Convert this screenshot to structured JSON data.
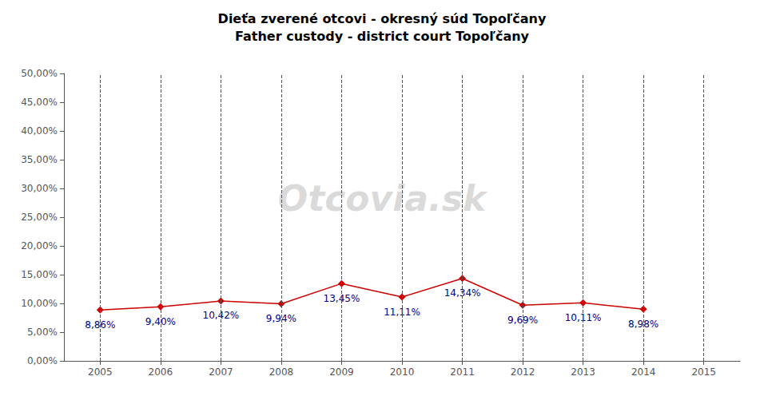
{
  "chart_data": {
    "type": "line",
    "title": "Dieťa zverené otcovi - okresný súd Topoľčany",
    "subtitle": "Father custody - district court Topoľčany",
    "x": [
      2005,
      2006,
      2007,
      2008,
      2009,
      2010,
      2011,
      2012,
      2013,
      2014
    ],
    "values": [
      8.86,
      9.4,
      10.42,
      9.94,
      13.45,
      11.11,
      14.34,
      9.69,
      10.11,
      8.98
    ],
    "value_labels": [
      "8,86%",
      "9,40%",
      "10,42%",
      "9,94%",
      "13,45%",
      "11,11%",
      "14,34%",
      "9,69%",
      "10,11%",
      "8,98%"
    ],
    "data_labels": true,
    "color": "#CC0000",
    "marker": "diamond",
    "xlim": [
      2004.4,
      2015.6
    ],
    "xticks": [
      2005,
      2006,
      2007,
      2008,
      2009,
      2010,
      2011,
      2012,
      2013,
      2014,
      2015
    ],
    "ylim": [
      0,
      50
    ],
    "yticks": [
      {
        "value": 0,
        "label": "0,00%"
      },
      {
        "value": 5,
        "label": "5,00%"
      },
      {
        "value": 10,
        "label": "10,00%"
      },
      {
        "value": 15,
        "label": "15,00%"
      },
      {
        "value": 20,
        "label": "20,00%"
      },
      {
        "value": 25,
        "label": "25,00%"
      },
      {
        "value": 30,
        "label": "30,00%"
      },
      {
        "value": 35,
        "label": "35,00%"
      },
      {
        "value": 40,
        "label": "40,00%"
      },
      {
        "value": 45,
        "label": "45,00%"
      },
      {
        "value": 50,
        "label": "50,00%"
      }
    ],
    "grid": "x",
    "annotations": [
      "Otcovia.sk"
    ]
  }
}
